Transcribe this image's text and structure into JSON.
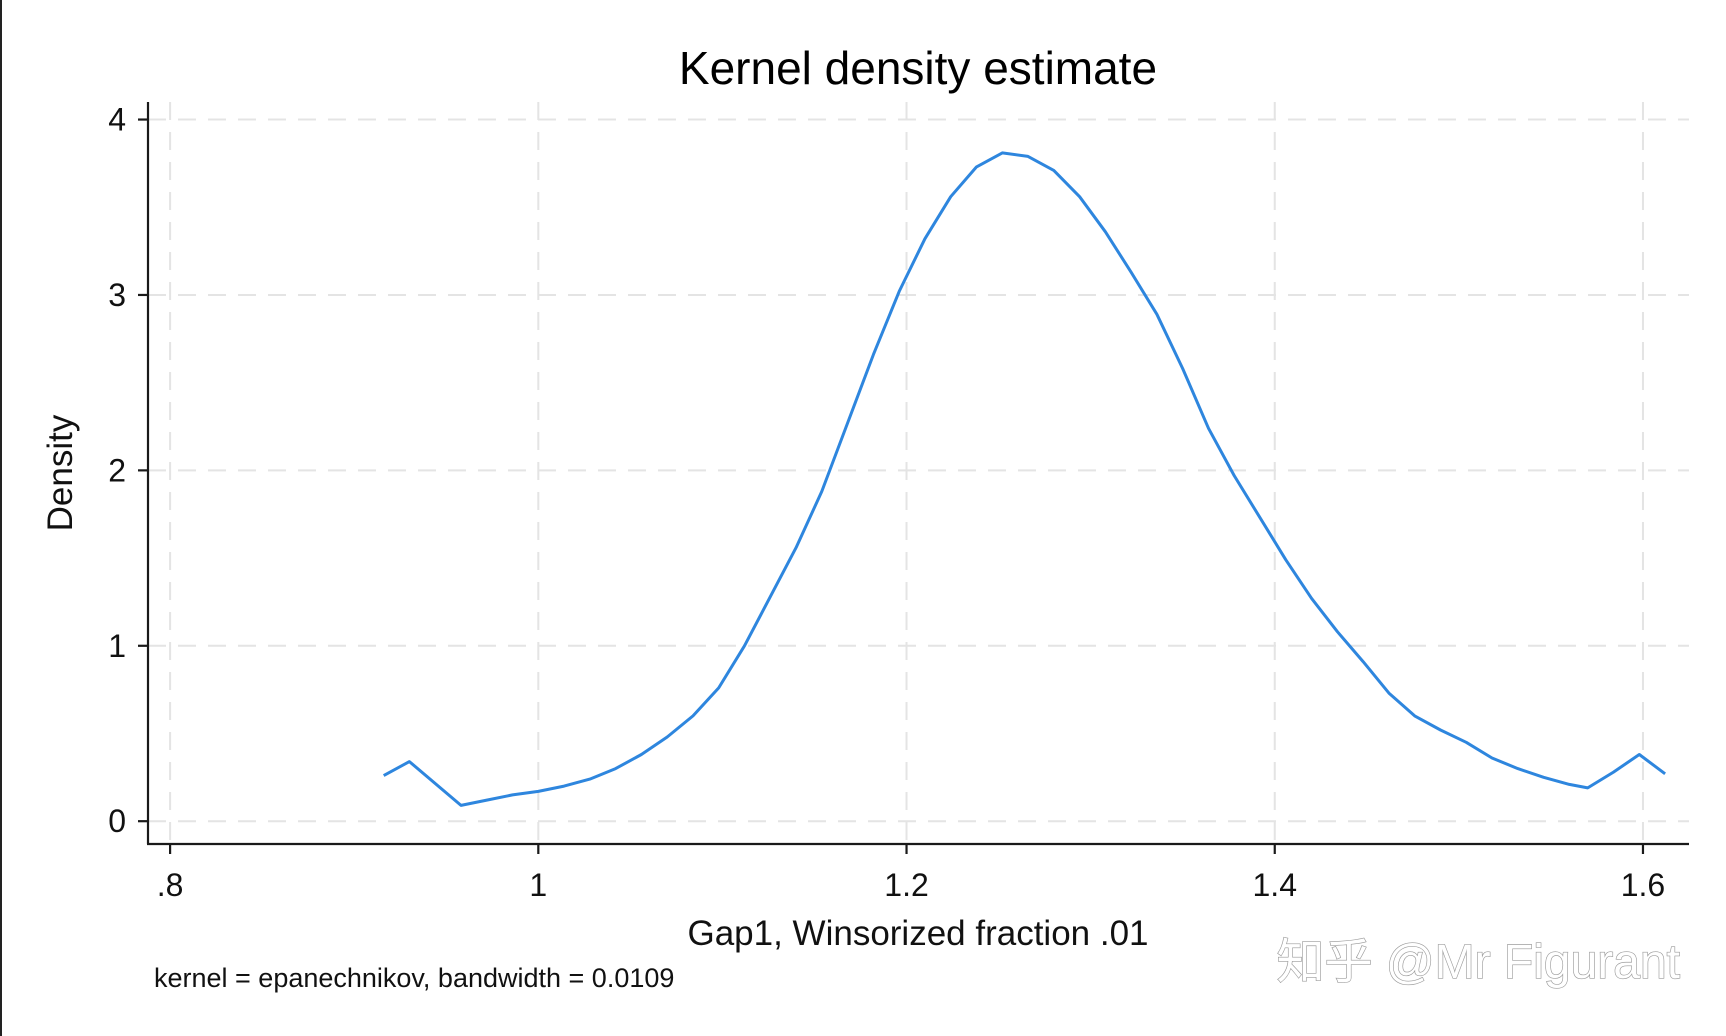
{
  "chart_data": {
    "type": "line",
    "title": "Kernel density estimate",
    "xlabel": "Gap1, Winsorized fraction .01",
    "ylabel": "Density",
    "note": "kernel = epanechnikov, bandwidth = 0.0109",
    "xlim": [
      0.788,
      1.625
    ],
    "ylim": [
      -0.13,
      4.1
    ],
    "grid": true,
    "x_ticks": [
      0.8,
      1.0,
      1.2,
      1.4,
      1.6
    ],
    "x_tick_labels": [
      ".8",
      "1",
      "1.2",
      "1.4",
      "1.6"
    ],
    "y_ticks": [
      0,
      1,
      2,
      3,
      4
    ],
    "y_tick_labels": [
      "0",
      "1",
      "2",
      "3",
      "4"
    ],
    "series": [
      {
        "name": "density",
        "color": "#2e86de",
        "x": [
          0.916,
          0.93,
          0.958,
          0.972,
          0.986,
          1.0,
          1.014,
          1.028,
          1.042,
          1.056,
          1.07,
          1.084,
          1.098,
          1.112,
          1.126,
          1.14,
          1.154,
          1.168,
          1.182,
          1.196,
          1.21,
          1.224,
          1.238,
          1.252,
          1.266,
          1.28,
          1.294,
          1.308,
          1.322,
          1.336,
          1.35,
          1.364,
          1.378,
          1.392,
          1.406,
          1.42,
          1.434,
          1.448,
          1.462,
          1.476,
          1.49,
          1.504,
          1.518,
          1.532,
          1.546,
          1.56,
          1.57,
          1.584,
          1.598,
          1.612
        ],
        "values": [
          0.26,
          0.34,
          0.09,
          0.12,
          0.15,
          0.17,
          0.2,
          0.24,
          0.3,
          0.38,
          0.48,
          0.6,
          0.76,
          1.0,
          1.28,
          1.56,
          1.88,
          2.27,
          2.66,
          3.02,
          3.32,
          3.56,
          3.73,
          3.81,
          3.79,
          3.71,
          3.56,
          3.36,
          3.13,
          2.89,
          2.58,
          2.24,
          1.97,
          1.73,
          1.49,
          1.27,
          1.08,
          0.91,
          0.73,
          0.6,
          0.52,
          0.45,
          0.36,
          0.3,
          0.25,
          0.21,
          0.19,
          0.28,
          0.38,
          0.27
        ]
      }
    ]
  },
  "watermark": "知乎 @Mr Figurant"
}
